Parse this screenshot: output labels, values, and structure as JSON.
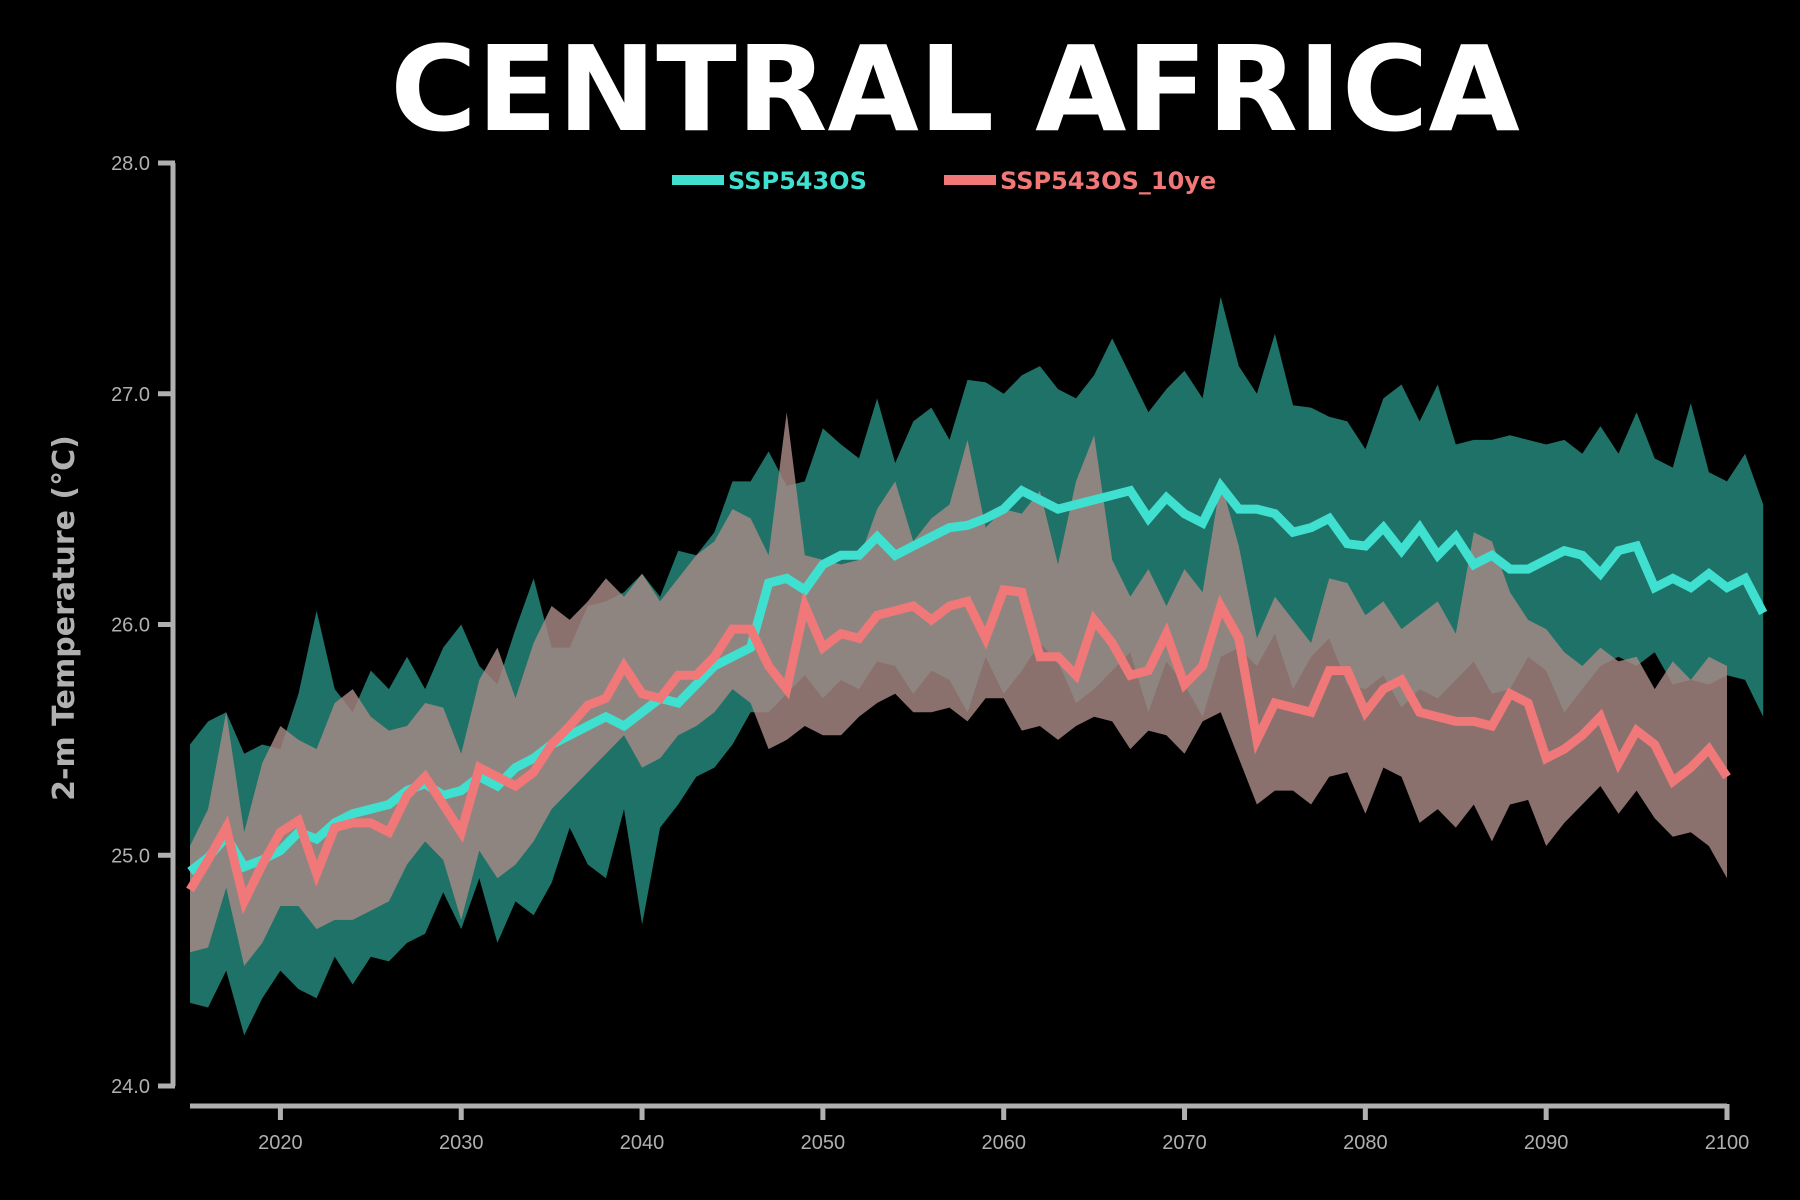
{
  "chart_data": {
    "type": "line",
    "title": "CENTRAL AFRICA",
    "xlabel": "",
    "ylabel": "2-m Temperature (°C)",
    "xlim": [
      2015,
      2100
    ],
    "ylim": [
      24.0,
      28.0
    ],
    "xticks": [
      2020,
      2030,
      2040,
      2050,
      2060,
      2070,
      2080,
      2090,
      2100
    ],
    "yticks": [
      24.0,
      25.0,
      26.0,
      27.0,
      28.0
    ],
    "ytick_labels": [
      "24.0",
      "25.0",
      "26.0",
      "27.0",
      "28.0"
    ],
    "grid": false,
    "legend_position": "top-center",
    "background": "#000000",
    "axis_color": "#b0b0b0",
    "series": [
      {
        "name": "SSP543OS",
        "line_color": "#40e0d0",
        "band_color": "#1f7267",
        "x_start": 2015,
        "values": [
          24.93,
          24.99,
          25.08,
          24.95,
          24.98,
          25.02,
          25.1,
          25.07,
          25.14,
          25.18,
          25.2,
          25.22,
          25.28,
          25.31,
          25.26,
          25.28,
          25.34,
          25.3,
          25.38,
          25.42,
          25.48,
          25.52,
          25.56,
          25.6,
          25.56,
          25.62,
          25.68,
          25.66,
          25.74,
          25.82,
          25.86,
          25.9,
          26.18,
          26.2,
          26.15,
          26.26,
          26.3,
          26.3,
          26.38,
          26.3,
          26.34,
          26.38,
          26.42,
          26.43,
          26.46,
          26.5,
          26.58,
          26.54,
          26.5,
          26.52,
          26.54,
          26.56,
          26.58,
          26.46,
          26.55,
          26.48,
          26.44,
          26.6,
          26.5,
          26.5,
          26.48,
          26.4,
          26.42,
          26.46,
          26.35,
          26.34,
          26.42,
          26.32,
          26.42,
          26.3,
          26.38,
          26.26,
          26.3,
          26.24,
          26.24,
          26.28,
          26.32,
          26.3,
          26.22,
          26.32,
          26.34,
          26.16,
          26.2,
          26.16,
          26.22,
          26.16,
          26.2,
          26.05
        ],
        "band_upper": [
          25.48,
          25.58,
          25.62,
          25.44,
          25.48,
          25.46,
          25.7,
          26.06,
          25.72,
          25.62,
          25.8,
          25.72,
          25.86,
          25.72,
          25.9,
          26.0,
          25.82,
          25.74,
          25.98,
          26.2,
          25.9,
          25.9,
          26.08,
          26.1,
          26.14,
          26.22,
          26.12,
          26.32,
          26.3,
          26.4,
          26.62,
          26.62,
          26.75,
          26.6,
          26.62,
          26.85,
          26.78,
          26.72,
          26.98,
          26.7,
          26.88,
          26.94,
          26.8,
          27.06,
          27.05,
          27.0,
          27.08,
          27.12,
          27.02,
          26.98,
          27.08,
          27.24,
          27.08,
          26.92,
          27.02,
          27.1,
          26.98,
          27.42,
          27.12,
          27.0,
          27.26,
          26.95,
          26.94,
          26.9,
          26.88,
          26.76,
          26.98,
          27.04,
          26.88,
          27.04,
          26.78,
          26.8,
          26.8,
          26.82,
          26.8,
          26.78,
          26.8,
          26.74,
          26.86,
          26.74,
          26.92,
          26.72,
          26.68,
          26.96,
          26.66,
          26.62,
          26.74,
          26.52
        ],
        "band_lower": [
          24.36,
          24.34,
          24.5,
          24.22,
          24.38,
          24.5,
          24.42,
          24.38,
          24.56,
          24.44,
          24.56,
          24.54,
          24.62,
          24.66,
          24.84,
          24.68,
          24.9,
          24.62,
          24.8,
          24.74,
          24.88,
          25.12,
          24.96,
          24.9,
          25.2,
          24.7,
          25.12,
          25.22,
          25.34,
          25.38,
          25.48,
          25.62,
          25.62,
          25.7,
          25.78,
          25.68,
          25.76,
          25.72,
          25.84,
          25.82,
          25.7,
          25.8,
          25.76,
          25.62,
          25.86,
          25.7,
          25.8,
          25.92,
          25.84,
          25.66,
          25.72,
          25.8,
          25.88,
          25.62,
          25.84,
          25.74,
          25.6,
          25.86,
          25.9,
          25.82,
          25.96,
          25.72,
          25.86,
          25.94,
          25.74,
          25.72,
          25.78,
          25.64,
          25.72,
          25.68,
          25.76,
          25.84,
          25.7,
          25.72,
          25.86,
          25.8,
          25.62,
          25.72,
          25.82,
          25.86,
          25.82,
          25.88,
          25.74,
          25.76,
          25.74,
          25.78,
          25.76,
          25.6
        ]
      },
      {
        "name": "SSP543OS_10ye",
        "line_color": "#f07878",
        "band_color": "#a88a86",
        "x_start": 2015,
        "values": [
          24.85,
          24.98,
          25.12,
          24.8,
          24.96,
          25.1,
          25.15,
          24.92,
          25.12,
          25.14,
          25.14,
          25.1,
          25.26,
          25.34,
          25.22,
          25.1,
          25.38,
          25.34,
          25.3,
          25.36,
          25.48,
          25.56,
          25.65,
          25.68,
          25.82,
          25.7,
          25.68,
          25.78,
          25.78,
          25.86,
          25.98,
          25.98,
          25.82,
          25.72,
          26.08,
          25.9,
          25.96,
          25.94,
          26.04,
          26.06,
          26.08,
          26.02,
          26.08,
          26.1,
          25.94,
          26.15,
          26.14,
          25.86,
          25.86,
          25.78,
          26.02,
          25.92,
          25.78,
          25.8,
          25.96,
          25.74,
          25.82,
          26.08,
          25.94,
          25.5,
          25.66,
          25.64,
          25.62,
          25.8,
          25.8,
          25.62,
          25.72,
          25.76,
          25.62,
          25.6,
          25.58,
          25.58,
          25.56,
          25.7,
          25.66,
          25.42,
          25.46,
          25.52,
          25.6,
          25.4,
          25.54,
          25.48,
          25.32,
          25.38,
          25.46,
          25.34
        ],
        "band_upper": [
          25.04,
          25.2,
          25.62,
          25.1,
          25.4,
          25.56,
          25.5,
          25.46,
          25.66,
          25.72,
          25.6,
          25.54,
          25.56,
          25.66,
          25.64,
          25.44,
          25.76,
          25.9,
          25.68,
          25.92,
          26.08,
          26.02,
          26.1,
          26.2,
          26.12,
          26.22,
          26.1,
          26.2,
          26.3,
          26.36,
          26.5,
          26.46,
          26.3,
          26.92,
          26.3,
          26.28,
          26.26,
          26.28,
          26.5,
          26.62,
          26.36,
          26.46,
          26.52,
          26.8,
          26.42,
          26.5,
          26.48,
          26.58,
          26.26,
          26.62,
          26.82,
          26.28,
          26.12,
          26.24,
          26.08,
          26.24,
          26.14,
          26.62,
          26.34,
          25.94,
          26.12,
          26.02,
          25.92,
          26.2,
          26.18,
          26.04,
          26.1,
          25.98,
          26.04,
          26.1,
          25.96,
          26.4,
          26.36,
          26.14,
          26.02,
          25.98,
          25.88,
          25.82,
          25.9,
          25.84,
          25.86,
          25.72,
          25.84,
          25.76,
          25.86,
          25.82
        ],
        "band_lower": [
          24.58,
          24.6,
          24.86,
          24.52,
          24.62,
          24.78,
          24.78,
          24.68,
          24.72,
          24.72,
          24.76,
          24.8,
          24.96,
          25.06,
          24.98,
          24.72,
          25.02,
          24.9,
          24.96,
          25.06,
          25.2,
          25.28,
          25.36,
          25.44,
          25.52,
          25.38,
          25.42,
          25.52,
          25.56,
          25.62,
          25.72,
          25.66,
          25.46,
          25.5,
          25.56,
          25.52,
          25.52,
          25.6,
          25.66,
          25.7,
          25.62,
          25.62,
          25.64,
          25.58,
          25.68,
          25.68,
          25.54,
          25.56,
          25.5,
          25.56,
          25.6,
          25.58,
          25.46,
          25.54,
          25.52,
          25.44,
          25.58,
          25.62,
          25.42,
          25.22,
          25.28,
          25.28,
          25.22,
          25.34,
          25.36,
          25.18,
          25.38,
          25.34,
          25.14,
          25.2,
          25.12,
          25.22,
          25.06,
          25.22,
          25.24,
          25.04,
          25.14,
          25.22,
          25.3,
          25.18,
          25.28,
          25.16,
          25.08,
          25.1,
          25.04,
          24.9
        ]
      }
    ]
  }
}
